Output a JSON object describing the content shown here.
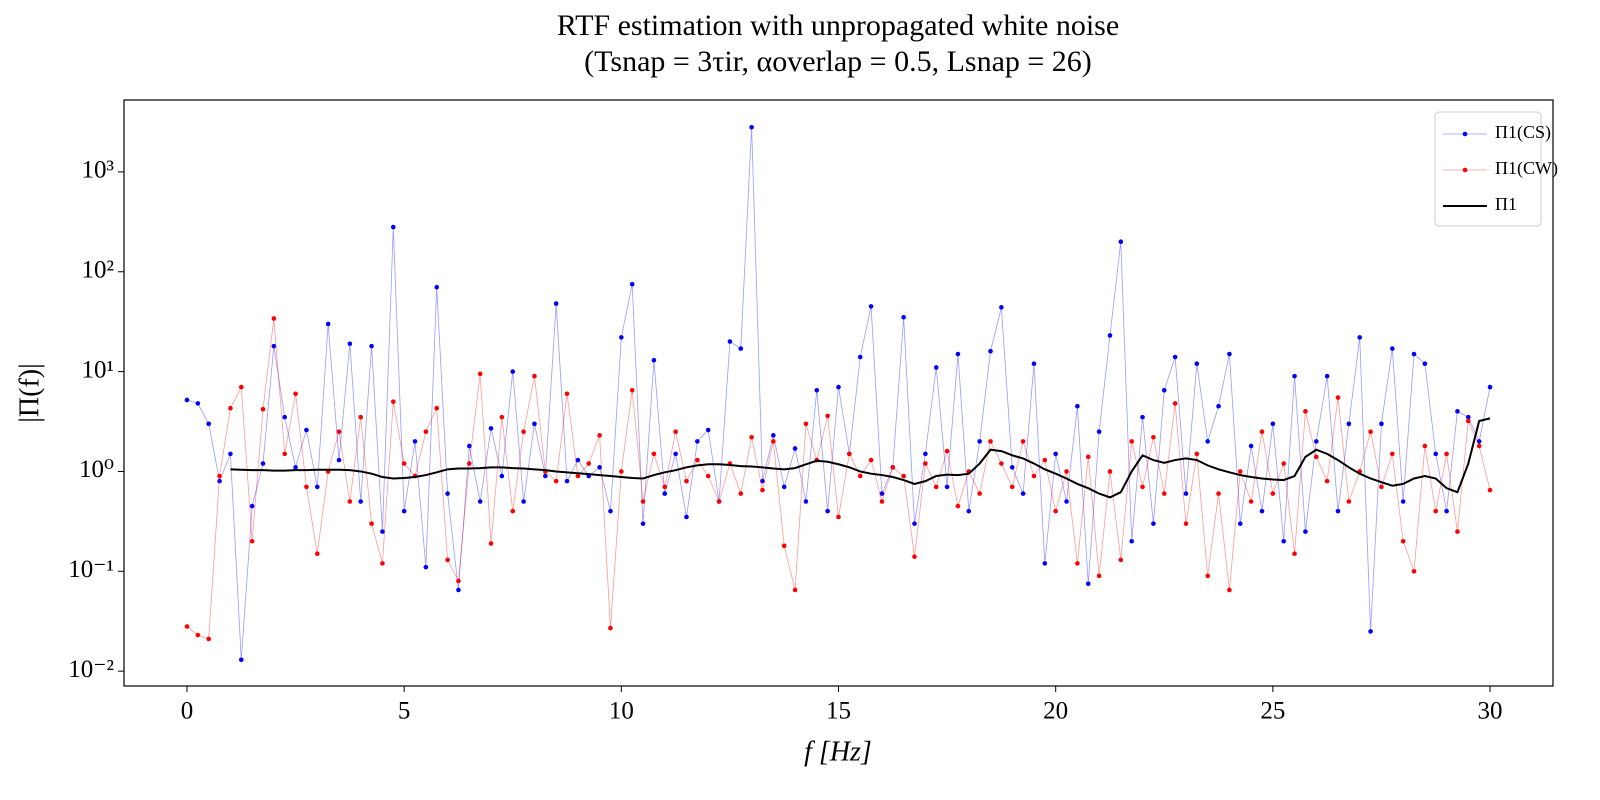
{
  "chart_data": {
    "type": "line",
    "title": "RTF estimation with unpropagated white noise",
    "subtitle": "(Tsnap = 3τir,   αoverlap = 0.5,   Lsnap = 26)",
    "x_label": "f [Hz]",
    "y_label": "|Π(f)|",
    "log_y": true,
    "grid": false,
    "legend": "upper right",
    "xlim": [
      -1.45,
      31.45
    ],
    "xticks": [
      0,
      5,
      10,
      15,
      20,
      25,
      30
    ],
    "ylim": [
      0.0071,
      5250
    ],
    "yticks": [
      {
        "value": 0.01,
        "label": "10⁻²"
      },
      {
        "value": 0.1,
        "label": "10⁻¹"
      },
      {
        "value": 1,
        "label": "10⁰"
      },
      {
        "value": 10,
        "label": "10¹"
      },
      {
        "value": 100,
        "label": "10²"
      },
      {
        "value": 1000,
        "label": "10³"
      }
    ],
    "x": [
      0,
      0.25,
      0.5,
      0.75,
      1,
      1.25,
      1.5,
      1.75,
      2,
      2.25,
      2.5,
      2.75,
      3,
      3.25,
      3.5,
      3.75,
      4,
      4.25,
      4.5,
      4.75,
      5,
      5.25,
      5.5,
      5.75,
      6,
      6.25,
      6.5,
      6.75,
      7,
      7.25,
      7.5,
      7.75,
      8,
      8.25,
      8.5,
      8.75,
      9,
      9.25,
      9.5,
      9.75,
      10,
      10.25,
      10.5,
      10.75,
      11,
      11.25,
      11.5,
      11.75,
      12,
      12.25,
      12.5,
      12.75,
      13,
      13.25,
      13.5,
      13.75,
      14,
      14.25,
      14.5,
      14.75,
      15,
      15.25,
      15.5,
      15.75,
      16,
      16.25,
      16.5,
      16.75,
      17,
      17.25,
      17.5,
      17.75,
      18,
      18.25,
      18.5,
      18.75,
      19,
      19.25,
      19.5,
      19.75,
      20,
      20.25,
      20.5,
      20.75,
      21,
      21.25,
      21.5,
      21.75,
      22,
      22.25,
      22.5,
      22.75,
      23,
      23.25,
      23.5,
      23.75,
      24,
      24.25,
      24.5,
      24.75,
      25,
      25.25,
      25.5,
      25.75,
      26,
      26.25,
      26.5,
      26.75,
      27,
      27.25,
      27.5,
      27.75,
      28,
      28.25,
      28.5,
      28.75,
      29,
      29.25,
      29.5,
      29.75,
      30
    ],
    "series": [
      {
        "name": "Π1(CS)",
        "color": "#0000ff",
        "marker": true,
        "values": [
          5.2,
          4.8,
          3.0,
          0.8,
          1.5,
          0.013,
          0.45,
          1.2,
          18,
          3.5,
          1.1,
          2.6,
          0.7,
          30,
          1.3,
          19,
          0.5,
          18,
          0.25,
          280,
          0.4,
          2.0,
          0.11,
          70,
          0.6,
          0.065,
          1.8,
          0.5,
          2.7,
          0.9,
          10,
          0.5,
          3.0,
          0.9,
          48,
          0.8,
          1.3,
          0.9,
          1.1,
          0.4,
          22,
          75,
          0.3,
          13,
          0.6,
          1.5,
          0.35,
          2.0,
          2.6,
          0.5,
          20,
          17,
          2800,
          0.8,
          2.3,
          0.7,
          1.7,
          0.5,
          6.5,
          0.4,
          7.0,
          1.5,
          14,
          45,
          0.6,
          1.1,
          35,
          0.3,
          1.5,
          11,
          0.7,
          15,
          0.4,
          2.0,
          16,
          44,
          1.1,
          0.6,
          12,
          0.12,
          1.5,
          0.5,
          4.5,
          0.075,
          2.5,
          23,
          200,
          0.2,
          3.5,
          0.3,
          6.5,
          14,
          0.6,
          12,
          2.0,
          4.5,
          15,
          0.3,
          1.8,
          0.4,
          3.0,
          0.2,
          9,
          0.25,
          2.0,
          9,
          0.4,
          3,
          22,
          0.025,
          3,
          17,
          0.5,
          15,
          12,
          1.5,
          0.4,
          4,
          3.5,
          2.0,
          7
        ]
      },
      {
        "name": "Π1(CW)",
        "color": "#ff0000",
        "marker": true,
        "values": [
          0.028,
          0.023,
          0.021,
          0.9,
          4.3,
          7,
          0.2,
          4.2,
          34,
          1.5,
          6,
          0.7,
          0.15,
          1.0,
          2.5,
          0.5,
          3.5,
          0.3,
          0.12,
          5,
          1.2,
          0.9,
          2.5,
          4.3,
          0.13,
          0.08,
          1.2,
          9.5,
          0.19,
          3.5,
          0.4,
          2.5,
          9,
          1.0,
          0.8,
          6,
          0.9,
          1.2,
          2.3,
          0.027,
          1.0,
          6.5,
          0.5,
          1.5,
          0.7,
          2.5,
          0.8,
          1.3,
          0.9,
          0.5,
          1.2,
          0.6,
          2.2,
          0.65,
          2.0,
          0.18,
          0.065,
          3.0,
          1.3,
          3.6,
          0.35,
          1.5,
          0.9,
          1.3,
          0.5,
          1.1,
          0.9,
          0.14,
          1.2,
          0.7,
          1.6,
          0.45,
          1.0,
          0.6,
          2.0,
          1.2,
          0.7,
          2.0,
          0.9,
          1.3,
          0.4,
          1.0,
          0.12,
          1.4,
          0.09,
          1.0,
          0.13,
          2.0,
          0.7,
          2.2,
          0.6,
          4.8,
          0.3,
          1.5,
          0.09,
          0.6,
          0.065,
          1.0,
          0.5,
          2.5,
          0.6,
          1.2,
          0.15,
          4.0,
          1.4,
          0.8,
          5.5,
          0.5,
          1.0,
          2.5,
          0.7,
          1.5,
          0.2,
          0.1,
          1.8,
          0.4,
          1.5,
          0.25,
          3.2,
          1.8,
          0.65
        ]
      },
      {
        "name": "Π1",
        "color": "#000000",
        "marker": false,
        "values": [
          null,
          null,
          null,
          null,
          1.05,
          1.04,
          1.03,
          1.03,
          1.02,
          1.02,
          1.03,
          1.03,
          1.04,
          1.04,
          1.04,
          1.03,
          1.0,
          0.95,
          0.88,
          0.85,
          0.86,
          0.88,
          0.92,
          0.98,
          1.05,
          1.07,
          1.07,
          1.08,
          1.1,
          1.1,
          1.08,
          1.07,
          1.05,
          1.03,
          1.0,
          0.98,
          0.96,
          0.94,
          0.92,
          0.9,
          0.88,
          0.86,
          0.85,
          0.92,
          0.98,
          1.03,
          1.1,
          1.15,
          1.18,
          1.18,
          1.16,
          1.13,
          1.12,
          1.1,
          1.07,
          1.05,
          1.08,
          1.18,
          1.28,
          1.25,
          1.18,
          1.1,
          1.0,
          0.95,
          0.92,
          0.88,
          0.82,
          0.75,
          0.8,
          0.9,
          0.93,
          0.92,
          0.95,
          1.2,
          1.65,
          1.6,
          1.45,
          1.35,
          1.2,
          1.05,
          0.95,
          0.85,
          0.75,
          0.68,
          0.6,
          0.55,
          0.62,
          1.0,
          1.45,
          1.3,
          1.22,
          1.3,
          1.35,
          1.3,
          1.15,
          1.05,
          0.98,
          0.92,
          0.88,
          0.85,
          0.83,
          0.82,
          0.9,
          1.4,
          1.65,
          1.5,
          1.3,
          1.1,
          0.95,
          0.85,
          0.78,
          0.72,
          0.75,
          0.85,
          0.9,
          0.85,
          0.68,
          0.62,
          1.2,
          3.2,
          3.4
        ]
      }
    ]
  }
}
